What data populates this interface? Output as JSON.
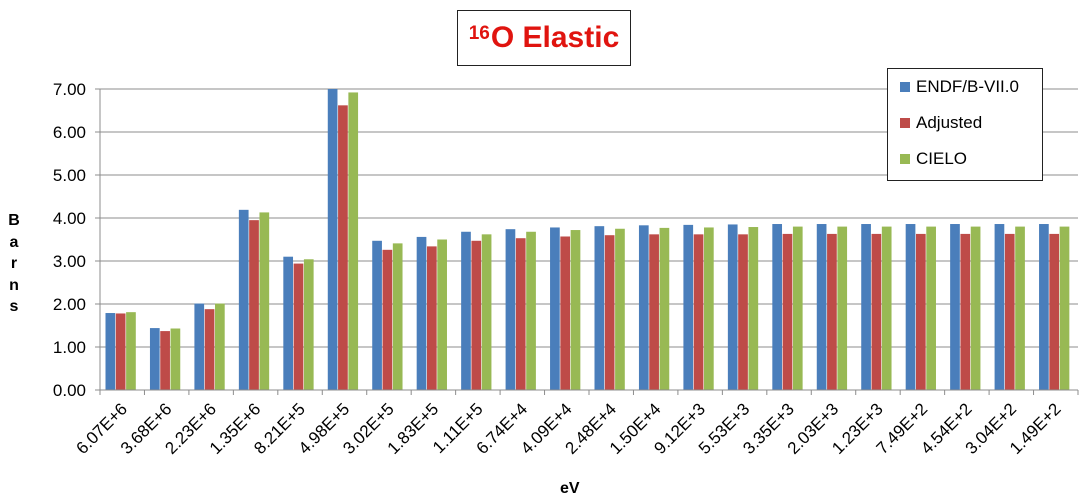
{
  "title": {
    "prefix": "16",
    "main": "O Elastic"
  },
  "chart_data": {
    "type": "bar",
    "title": "16O Elastic",
    "xlabel": "eV",
    "ylabel": "Barns",
    "ylim": [
      0,
      7
    ],
    "yticks": [
      "0.00",
      "1.00",
      "2.00",
      "3.00",
      "4.00",
      "5.00",
      "6.00",
      "7.00"
    ],
    "categories": [
      "6.07E+6",
      "3.68E+6",
      "2.23E+6",
      "1.35E+6",
      "8.21E+5",
      "4.98E+5",
      "3.02E+5",
      "1.83E+5",
      "1.11E+5",
      "6.74E+4",
      "4.09E+4",
      "2.48E+4",
      "1.50E+4",
      "9.12E+3",
      "5.53E+3",
      "3.35E+3",
      "2.03E+3",
      "1.23E+3",
      "7.49E+2",
      "4.54E+2",
      "3.04E+2",
      "1.49E+2"
    ],
    "series": [
      {
        "name": "ENDF/B-VII.0",
        "color": "#4a7ebb",
        "values": [
          1.79,
          1.44,
          2.01,
          4.19,
          3.1,
          7.0,
          3.47,
          3.56,
          3.68,
          3.74,
          3.78,
          3.81,
          3.83,
          3.84,
          3.85,
          3.86,
          3.86,
          3.86,
          3.86,
          3.86,
          3.86,
          3.86
        ]
      },
      {
        "name": "Adjusted",
        "color": "#be4b48",
        "values": [
          1.78,
          1.37,
          1.88,
          3.95,
          2.94,
          6.62,
          3.26,
          3.34,
          3.47,
          3.53,
          3.57,
          3.6,
          3.62,
          3.62,
          3.62,
          3.63,
          3.63,
          3.63,
          3.63,
          3.63,
          3.63,
          3.63
        ]
      },
      {
        "name": "CIELO",
        "color": "#98b954",
        "values": [
          1.81,
          1.43,
          2.01,
          4.13,
          3.04,
          6.92,
          3.41,
          3.5,
          3.62,
          3.68,
          3.72,
          3.75,
          3.77,
          3.78,
          3.79,
          3.8,
          3.8,
          3.8,
          3.8,
          3.8,
          3.8,
          3.8
        ]
      }
    ],
    "grid": true,
    "legend_position": "top-right"
  },
  "legend": {
    "items": [
      {
        "label": "ENDF/B-VII.0",
        "color": "#4a7ebb"
      },
      {
        "label": "Adjusted",
        "color": "#be4b48"
      },
      {
        "label": "CIELO",
        "color": "#98b954"
      }
    ]
  },
  "axis": {
    "ylabel_letters": [
      "B",
      "a",
      "r",
      "n",
      "s"
    ],
    "xlabel": "eV"
  }
}
